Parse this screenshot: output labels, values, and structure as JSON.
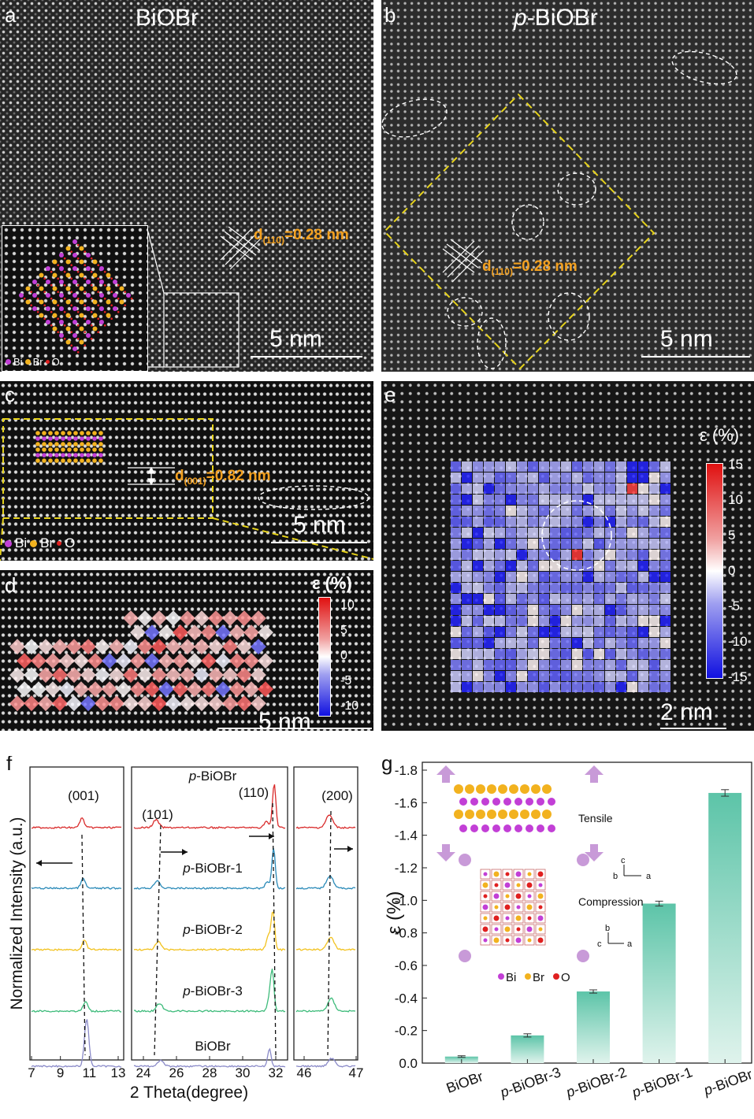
{
  "panel_a": {
    "label": "a",
    "title": "BiOBr",
    "d_text": "d",
    "d_sub": "(110)",
    "d_value": "=0.28 nm",
    "scalebar": "5 nm",
    "legend": {
      "bi": "Bi",
      "br": "Br",
      "o": "O"
    }
  },
  "panel_b": {
    "label": "b",
    "title_prefix": "p",
    "title_rest": "-BiOBr",
    "d_text": "d",
    "d_sub": "(110)",
    "d_value": "=0.28 nm",
    "scalebar": "5 nm"
  },
  "panel_c": {
    "label": "c",
    "d_text": "d",
    "d_sub": "(001)",
    "d_value": "=0.82 nm",
    "scalebar": "5 nm",
    "legend": {
      "bi": "Bi",
      "br": "Br",
      "o": "O"
    }
  },
  "panel_d": {
    "label": "d",
    "colorbar_title": "ε (%)",
    "ticks": [
      "10",
      "5",
      "0",
      "-5",
      "-10"
    ],
    "scalebar": "5 nm"
  },
  "panel_e": {
    "label": "e",
    "colorbar_title": "ε (%)",
    "ticks": [
      "15",
      "10",
      "5",
      "0",
      "-5",
      "-10",
      "-15"
    ],
    "scalebar": "2 nm"
  },
  "panel_f": {
    "label": "f",
    "ylabel": "Normalized Intensity (a.u.)",
    "xlabel": "2 Theta(degree)",
    "peaks": [
      "(001)",
      "(101)",
      "(110)",
      "(200)"
    ],
    "x_ticks_1": [
      "7",
      "9",
      "11",
      "13"
    ],
    "x_ticks_2": [
      "24",
      "26",
      "28",
      "30",
      "32"
    ],
    "x_ticks_3": [
      "46",
      "47"
    ],
    "curves": [
      {
        "prefix": "p",
        "rest": "-BiOBr",
        "color": "#d92b2b"
      },
      {
        "prefix": "p",
        "rest": "-BiOBr-1",
        "color": "#2a8ab8"
      },
      {
        "prefix": "p",
        "rest": "-BiOBr-2",
        "color": "#f2c21f"
      },
      {
        "prefix": "p",
        "rest": "-BiOBr-3",
        "color": "#3dbb7a"
      },
      {
        "prefix": "",
        "rest": "BiOBr",
        "color": "#8a8ac8"
      }
    ]
  },
  "panel_g": {
    "label": "g",
    "ylabel": "ε (%)",
    "tensile": "Tensile",
    "compression": "Compression",
    "legend": {
      "bi": "Bi",
      "br": "Br",
      "o": "O"
    },
    "axis_top": {
      "c": "c",
      "b": "b",
      "a": "a"
    },
    "axis_mid": {
      "b": "b",
      "c": "c",
      "a": "a"
    }
  },
  "chart_data": {
    "type": "bar",
    "categories": [
      "BiOBr",
      "p-BiOBr-3",
      "p-BiOBr-2",
      "p-BiOBr-1",
      "p-BiOBr"
    ],
    "values": [
      -0.04,
      -0.17,
      -0.44,
      -0.98,
      -1.66
    ],
    "errors": [
      0.005,
      0.01,
      0.01,
      0.015,
      0.02
    ],
    "ylabel": "ε (%)",
    "ylim": [
      0.0,
      -1.8
    ],
    "y_ticks": [
      "0.0",
      "-0.2",
      "-0.4",
      "-0.6",
      "-0.8",
      "-1.0",
      "-1.2",
      "-1.4",
      "-1.6",
      "-1.8"
    ],
    "bar_color": "#5cc4a8"
  }
}
